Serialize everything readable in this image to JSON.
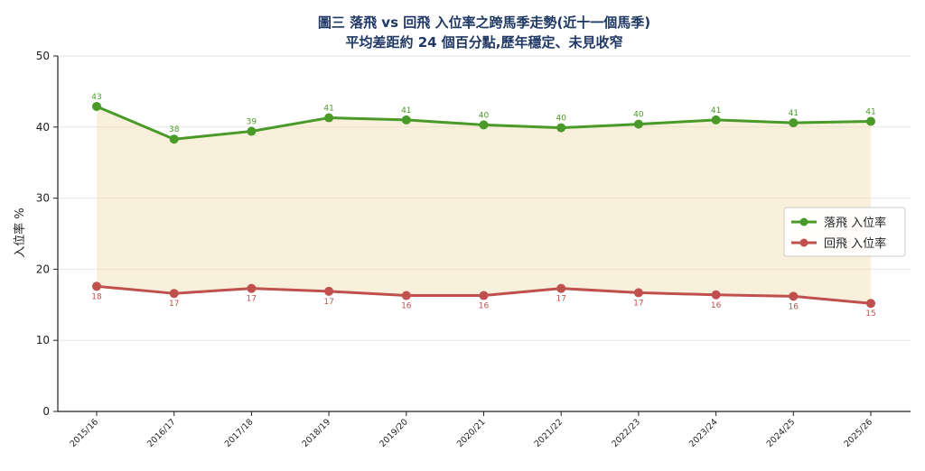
{
  "chart_data": {
    "type": "line",
    "title": "圖三 落飛 vs 回飛 入位率之跨馬季走勢(近十一個馬季)",
    "subtitle": "平均差距約 24 個百分點,歷年穩定、未見收窄",
    "xlabel": "",
    "ylabel": "入位率 %",
    "ylim": [
      0,
      50
    ],
    "yticks": [
      "0",
      "10",
      "20",
      "30",
      "40",
      "50"
    ],
    "grid": true,
    "legend_position": "center-right",
    "fill_between": true,
    "categories": [
      "2015/16",
      "2016/17",
      "2017/18",
      "2018/19",
      "2019/20",
      "2020/21",
      "2021/22",
      "2022/23",
      "2023/24",
      "2024/25",
      "2025/26"
    ],
    "series": [
      {
        "name": "落飛 入位率",
        "color": "#4a9a2a",
        "values": [
          42.9,
          38.3,
          39.4,
          41.3,
          41.0,
          40.3,
          39.9,
          40.4,
          41.0,
          40.6,
          40.8
        ],
        "labels": [
          "43",
          "38",
          "39",
          "41",
          "41",
          "40",
          "40",
          "40",
          "41",
          "41",
          "41"
        ]
      },
      {
        "name": "回飛 入位率",
        "color": "#c0504d",
        "values": [
          17.6,
          16.6,
          17.3,
          16.9,
          16.3,
          16.3,
          17.3,
          16.7,
          16.4,
          16.2,
          15.2
        ],
        "labels": [
          "18",
          "17",
          "17",
          "17",
          "16",
          "16",
          "17",
          "17",
          "16",
          "16",
          "15"
        ]
      }
    ]
  }
}
